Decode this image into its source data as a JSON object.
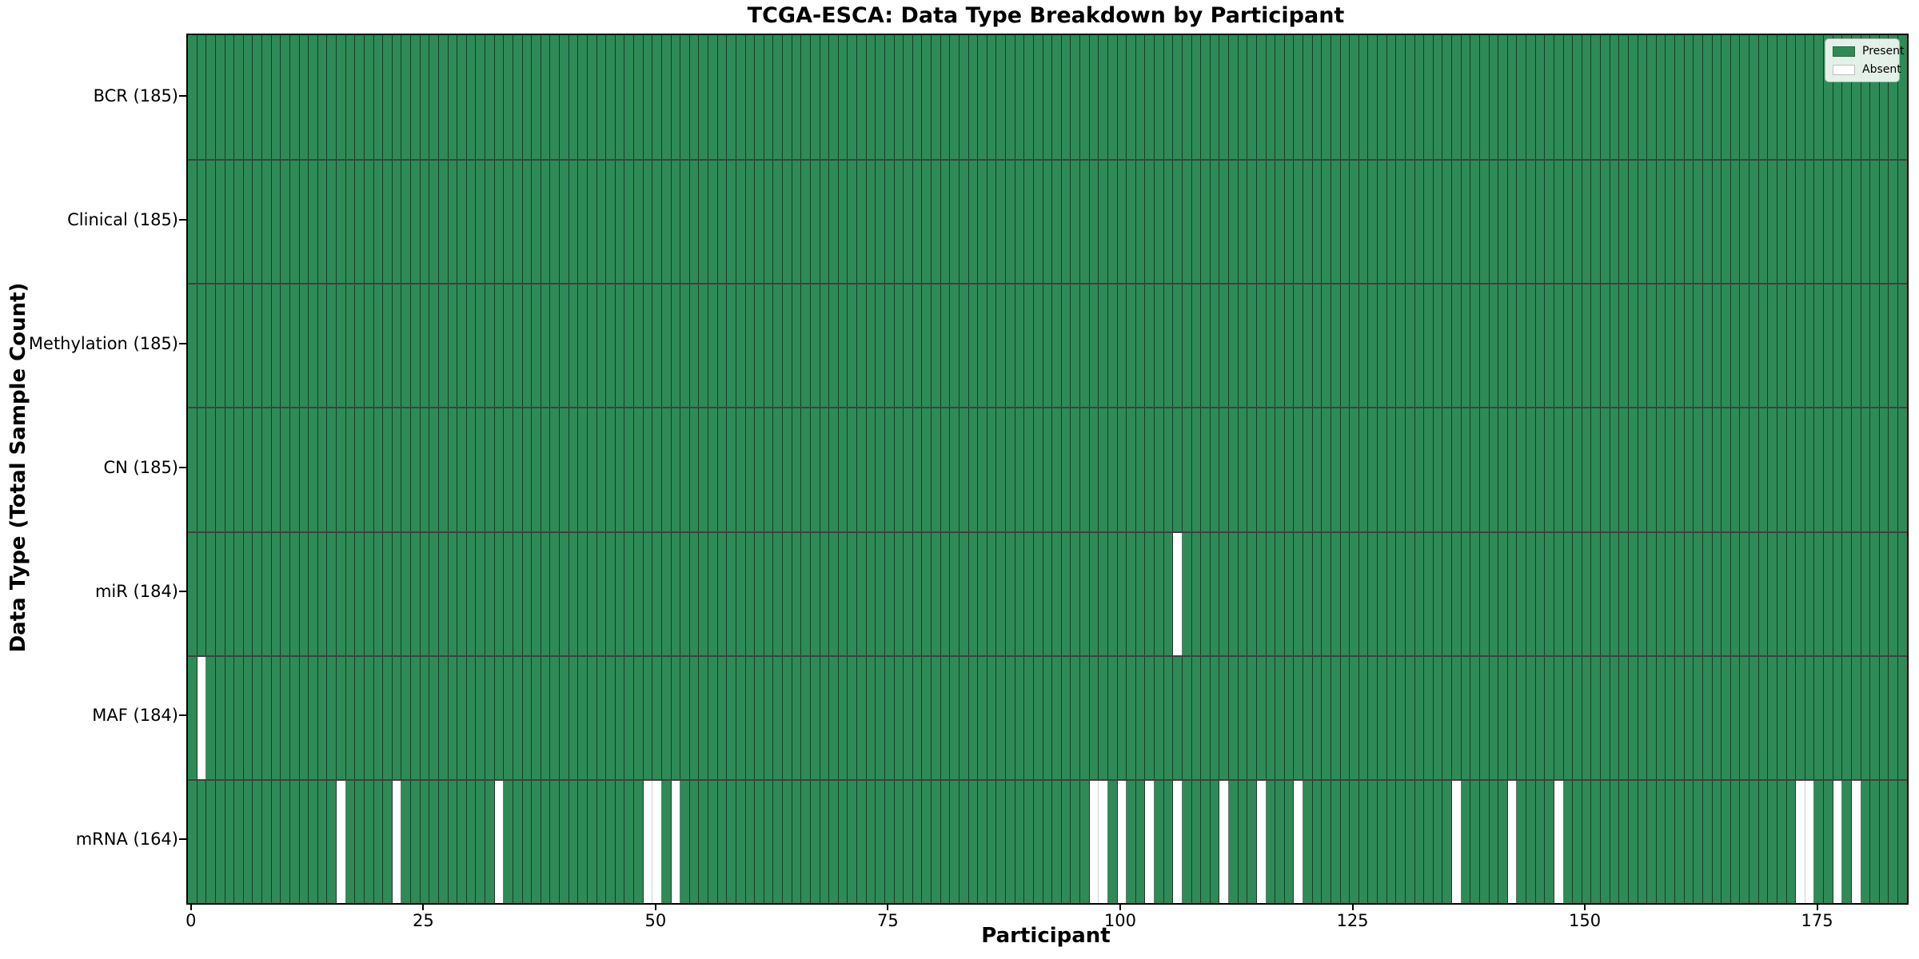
{
  "title": "TCGA-ESCA: Data Type Breakdown by Participant",
  "colors": {
    "present": "#2E8B57",
    "absent": "#FFFFFF",
    "bar_edge_dark": "rgba(0,0,0,0.55)",
    "bar_edge_light": "#cfcfcf",
    "row_separator": "rgba(0,0,0,0.75)",
    "spine": "#000000"
  },
  "chart_data": {
    "type": "heatmap",
    "title": "TCGA-ESCA: Data Type Breakdown by Participant",
    "xlabel": "Participant",
    "ylabel": "Data Type (Total Sample Count)",
    "n_participants": 185,
    "x_ticks": [
      0,
      25,
      50,
      75,
      100,
      125,
      150,
      175
    ],
    "grid": false,
    "legend_position": "upper right",
    "legend": [
      {
        "label": "Present",
        "color": "#2E8B57"
      },
      {
        "label": "Absent",
        "color": "#FFFFFF"
      }
    ],
    "rows": [
      {
        "label": "BCR (185)",
        "present_count": 185,
        "absent_participants": []
      },
      {
        "label": "Clinical (185)",
        "present_count": 185,
        "absent_participants": []
      },
      {
        "label": "Methylation (185)",
        "present_count": 185,
        "absent_participants": []
      },
      {
        "label": "CN (185)",
        "present_count": 185,
        "absent_participants": []
      },
      {
        "label": "miR (184)",
        "present_count": 184,
        "absent_participants": [
          106
        ]
      },
      {
        "label": "MAF (184)",
        "present_count": 184,
        "absent_participants": [
          1
        ]
      },
      {
        "label": "mRNA (164)",
        "present_count": 164,
        "absent_participants": [
          16,
          22,
          33,
          49,
          50,
          52,
          97,
          98,
          100,
          103,
          106,
          111,
          115,
          119,
          136,
          142,
          147,
          173,
          174,
          177,
          179
        ]
      }
    ]
  }
}
